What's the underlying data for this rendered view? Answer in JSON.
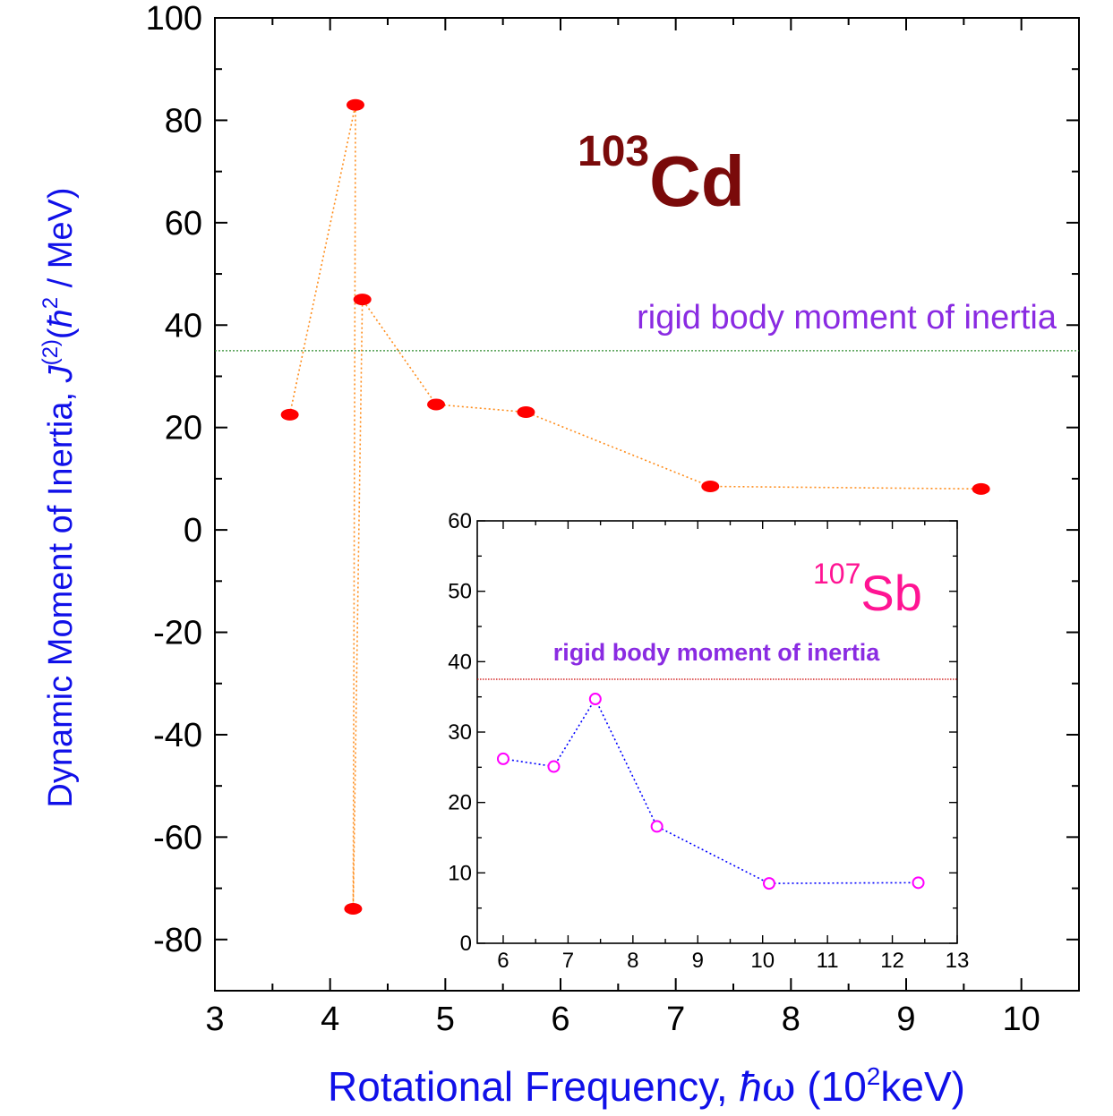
{
  "chart_data": [
    {
      "type": "scatter",
      "xlabel": "Rotational Frequency, ħω (10²keV)",
      "xlabel_parts": {
        "pre": "Rotational Frequency, ",
        "hbar": "ħ",
        "omega": "ω",
        "open": " (10",
        "sup": "2",
        "post": "keV)"
      },
      "ylabel": "Dynamic Moment of Inertia, J(2)(ħ2 / MeV)",
      "ylabel_parts": {
        "pre": "Dynamic Moment of Inertia, ",
        "J": "J",
        "sup1": "(2)",
        "open": "(",
        "hbar": "ħ",
        "sup2": "2",
        "post": " / MeV)"
      },
      "nucleus": {
        "mass": "103",
        "symbol": "Cd"
      },
      "xlim": [
        3,
        10.5
      ],
      "ylim": [
        -90,
        100
      ],
      "xticks": [
        3,
        4,
        5,
        6,
        7,
        8,
        9,
        10
      ],
      "yticks": [
        -80,
        -60,
        -40,
        -20,
        0,
        20,
        40,
        60,
        80,
        100
      ],
      "reference_line": {
        "label": "rigid body moment of inertia",
        "y": 35,
        "color": "#2e8b2e"
      },
      "series": [
        {
          "marker_color": "#ff0000",
          "line_color": "#ff8c1a",
          "x": [
            3.65,
            4.22,
            4.2,
            4.28,
            4.92,
            5.7,
            7.3,
            9.65
          ],
          "y": [
            22.5,
            83.0,
            -74.0,
            45.0,
            24.5,
            23.0,
            8.5,
            8.0
          ]
        }
      ],
      "grid": false,
      "legend": "none"
    },
    {
      "type": "scatter",
      "inset": true,
      "nucleus": {
        "mass": "107",
        "symbol": "Sb"
      },
      "xlim": [
        5.6,
        13
      ],
      "ylim": [
        0,
        60
      ],
      "xticks": [
        6,
        7,
        8,
        9,
        10,
        11,
        12,
        13
      ],
      "yticks": [
        0,
        10,
        20,
        30,
        40,
        50,
        60
      ],
      "reference_line": {
        "label": "rigid body moment of inertia",
        "y": 37.5,
        "color": "#cc0000"
      },
      "series": [
        {
          "marker_color": "#ff00ff",
          "line_color": "#0000ff",
          "x": [
            6.0,
            6.78,
            7.42,
            8.37,
            10.1,
            12.4
          ],
          "y": [
            26.2,
            25.1,
            34.7,
            16.6,
            8.5,
            8.6
          ]
        }
      ],
      "grid": false,
      "legend": "none"
    }
  ]
}
